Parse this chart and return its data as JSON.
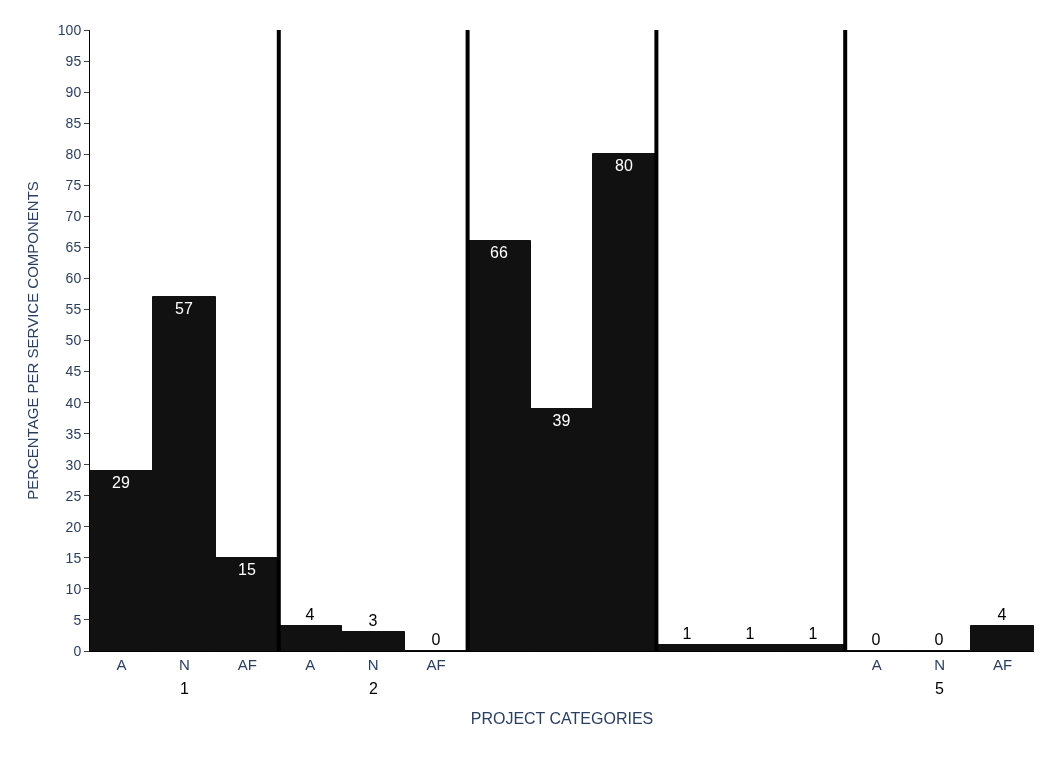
{
  "chart_data": {
    "type": "bar",
    "xlabel": "PROJECT CATEGORIES",
    "ylabel": "PERCENTAGE PER SERVICE COMPONENTS",
    "categories": [
      "A",
      "N",
      "AF",
      "A",
      "N",
      "AF",
      null,
      null,
      null,
      null,
      null,
      null,
      "A",
      "N",
      "AF"
    ],
    "values": [
      29,
      57,
      15,
      4,
      3,
      0,
      66,
      39,
      80,
      1,
      1,
      1,
      0,
      0,
      4
    ],
    "color": "#111111",
    "data_labels": true,
    "ylim": [
      0,
      100
    ],
    "yticks": [
      0,
      5,
      10,
      15,
      20,
      25,
      30,
      35,
      40,
      45,
      50,
      55,
      60,
      65,
      70,
      75,
      80,
      85,
      90,
      95,
      100
    ],
    "annotations": [
      "1",
      "2",
      "5"
    ]
  }
}
